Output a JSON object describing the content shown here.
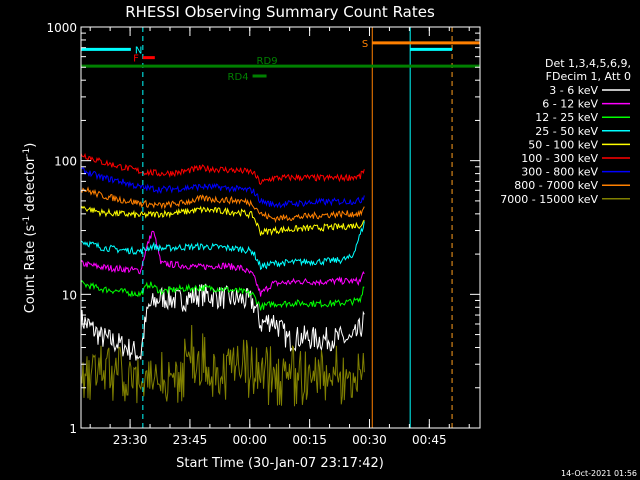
{
  "chart_data": {
    "type": "line",
    "title": "RHESSI Observing Summary Count Rates",
    "xlabel": "Start Time (30-Jan-07 23:17:42)",
    "ylabel_main": "Count Rate (s",
    "ylabel_sup1": "-1",
    "ylabel_mid": " detector",
    "ylabel_sup2": "-1",
    "ylabel_end": ")",
    "yscale": "log",
    "ylim": [
      1,
      1000
    ],
    "x_start": "23:17:42",
    "x_range_minutes": [
      0,
      100
    ],
    "x_ticks": [
      {
        "label": "23:30",
        "minute": 12.3
      },
      {
        "label": "23:45",
        "minute": 27.3
      },
      {
        "label": "00:00",
        "minute": 42.3
      },
      {
        "label": "00:15",
        "minute": 57.3
      },
      {
        "label": "00:30",
        "minute": 72.3
      },
      {
        "label": "00:45",
        "minute": 87.3
      }
    ],
    "y_ticks": [
      {
        "label": "1",
        "value": 1
      },
      {
        "label": "10",
        "value": 10
      },
      {
        "label": "100",
        "value": 100
      },
      {
        "label": "1000",
        "value": 1000
      }
    ],
    "legend_header": [
      "Det 1,3,4,5,6,9,",
      "FDecim 1, Att 0"
    ],
    "series": [
      {
        "name": "3 - 6 keV",
        "color": "#ffffff",
        "values": [
          [
            0,
            6.5
          ],
          [
            5,
            4.8
          ],
          [
            10,
            4.2
          ],
          [
            15,
            3.5
          ],
          [
            17,
            8
          ],
          [
            20,
            9.5
          ],
          [
            25,
            9
          ],
          [
            30,
            10
          ],
          [
            35,
            9.5
          ],
          [
            40,
            9.2
          ],
          [
            43,
            8.8
          ],
          [
            45,
            6
          ],
          [
            48,
            6.5
          ],
          [
            52,
            4.5
          ],
          [
            55,
            4.8
          ],
          [
            60,
            4.6
          ],
          [
            65,
            4.7
          ],
          [
            68,
            4.5
          ],
          [
            70,
            5.5
          ],
          [
            71,
            6.5
          ]
        ]
      },
      {
        "name": "6 - 12 keV",
        "color": "#ff00ff",
        "values": [
          [
            0,
            17
          ],
          [
            5,
            16
          ],
          [
            10,
            15.5
          ],
          [
            15,
            15
          ],
          [
            18,
            30
          ],
          [
            20,
            17
          ],
          [
            25,
            16.5
          ],
          [
            30,
            16
          ],
          [
            35,
            16.5
          ],
          [
            40,
            15.8
          ],
          [
            43,
            14
          ],
          [
            45,
            10
          ],
          [
            48,
            12
          ],
          [
            55,
            12.5
          ],
          [
            60,
            12.4
          ],
          [
            65,
            12.6
          ],
          [
            70,
            12.5
          ],
          [
            71,
            15
          ]
        ]
      },
      {
        "name": "12 - 25 keV",
        "color": "#00ff00",
        "values": [
          [
            0,
            12
          ],
          [
            5,
            11
          ],
          [
            10,
            10.5
          ],
          [
            15,
            10
          ],
          [
            17,
            12
          ],
          [
            20,
            10.5
          ],
          [
            25,
            11
          ],
          [
            30,
            11.2
          ],
          [
            35,
            11
          ],
          [
            40,
            10.5
          ],
          [
            43,
            10
          ],
          [
            45,
            8
          ],
          [
            48,
            8.5
          ],
          [
            55,
            8.6
          ],
          [
            60,
            8.5
          ],
          [
            65,
            8.6
          ],
          [
            70,
            9
          ],
          [
            71,
            12
          ]
        ]
      },
      {
        "name": "25 - 50 keV",
        "color": "#00ffff",
        "values": [
          [
            0,
            25
          ],
          [
            5,
            22.5
          ],
          [
            10,
            21.5
          ],
          [
            15,
            21
          ],
          [
            18,
            23
          ],
          [
            20,
            22
          ],
          [
            25,
            22.5
          ],
          [
            30,
            22.8
          ],
          [
            35,
            22.5
          ],
          [
            40,
            21.8
          ],
          [
            43,
            21
          ],
          [
            45,
            16
          ],
          [
            48,
            17
          ],
          [
            55,
            17.5
          ],
          [
            60,
            17.6
          ],
          [
            65,
            18
          ],
          [
            68,
            19
          ],
          [
            70,
            28
          ],
          [
            71,
            34
          ]
        ]
      },
      {
        "name": "50 - 100 keV",
        "color": "#ffff00",
        "values": [
          [
            0,
            45
          ],
          [
            5,
            41
          ],
          [
            10,
            40
          ],
          [
            15,
            39
          ],
          [
            20,
            40
          ],
          [
            25,
            41
          ],
          [
            30,
            43
          ],
          [
            35,
            42
          ],
          [
            40,
            41
          ],
          [
            43,
            39
          ],
          [
            45,
            29
          ],
          [
            48,
            30
          ],
          [
            55,
            31
          ],
          [
            60,
            31.5
          ],
          [
            65,
            32
          ],
          [
            70,
            33
          ],
          [
            71,
            35
          ]
        ]
      },
      {
        "name": "100 - 300 keV",
        "color": "#ff0000",
        "values": [
          [
            0,
            112
          ],
          [
            5,
            98
          ],
          [
            10,
            90
          ],
          [
            15,
            83
          ],
          [
            20,
            80
          ],
          [
            25,
            82
          ],
          [
            30,
            88
          ],
          [
            35,
            86
          ],
          [
            40,
            84
          ],
          [
            43,
            82
          ],
          [
            45,
            68
          ],
          [
            48,
            74
          ],
          [
            55,
            75
          ],
          [
            60,
            74
          ],
          [
            65,
            74.5
          ],
          [
            70,
            76
          ],
          [
            71,
            86
          ]
        ]
      },
      {
        "name": "300 - 800 keV",
        "color": "#0000ff",
        "values": [
          [
            0,
            85
          ],
          [
            5,
            75
          ],
          [
            10,
            70
          ],
          [
            15,
            63
          ],
          [
            20,
            61
          ],
          [
            25,
            62
          ],
          [
            30,
            64
          ],
          [
            35,
            63
          ],
          [
            40,
            61
          ],
          [
            43,
            60
          ],
          [
            45,
            50
          ],
          [
            48,
            47
          ],
          [
            55,
            48
          ],
          [
            60,
            49
          ],
          [
            65,
            49.5
          ],
          [
            70,
            50
          ],
          [
            71,
            55
          ]
        ]
      },
      {
        "name": "800 - 7000 keV",
        "color": "#ff8000",
        "values": [
          [
            0,
            62
          ],
          [
            5,
            55
          ],
          [
            10,
            51
          ],
          [
            15,
            48
          ],
          [
            20,
            46
          ],
          [
            25,
            48
          ],
          [
            30,
            52
          ],
          [
            35,
            51
          ],
          [
            40,
            50
          ],
          [
            43,
            48
          ],
          [
            45,
            40
          ],
          [
            48,
            37
          ],
          [
            55,
            38
          ],
          [
            60,
            39
          ],
          [
            65,
            40
          ],
          [
            70,
            40
          ],
          [
            71,
            44
          ]
        ]
      },
      {
        "name": "7000 - 15000 keV",
        "color": "#808000",
        "values": [
          [
            0,
            2
          ],
          [
            5,
            2
          ],
          [
            10,
            2
          ],
          [
            15,
            1.6
          ],
          [
            20,
            2
          ],
          [
            25,
            2
          ],
          [
            28,
            3
          ],
          [
            30,
            2.7
          ],
          [
            35,
            2
          ],
          [
            40,
            2.5
          ],
          [
            45,
            2
          ],
          [
            50,
            2
          ],
          [
            55,
            2
          ],
          [
            60,
            2
          ],
          [
            65,
            2
          ],
          [
            70,
            2
          ],
          [
            71,
            2.5
          ]
        ]
      }
    ],
    "markers": [
      {
        "label": "N",
        "color": "#00ffff",
        "y": 680,
        "segments": [
          [
            0,
            12.5
          ],
          [
            82.5,
            93
          ]
        ]
      },
      {
        "label": "F",
        "color": "#ff0000",
        "y": 590,
        "segments": [
          [
            15.5,
            18.5
          ]
        ]
      },
      {
        "label": "S",
        "color": "#ff8000",
        "y": 760,
        "segments": [
          [
            73,
            100
          ]
        ]
      },
      {
        "label": "RD9",
        "color": "#008000",
        "y": 510,
        "segments": [
          [
            0,
            100
          ]
        ]
      },
      {
        "label": "RD4",
        "color": "#008000",
        "y": 430,
        "segments": [
          [
            43,
            46.5
          ]
        ]
      }
    ],
    "vlines": [
      {
        "minute": 0,
        "color": "#00ffff",
        "style": "dashed"
      },
      {
        "minute": 15.5,
        "color": "#00ffff",
        "style": "dashed"
      },
      {
        "minute": 73,
        "color": "#ff8000",
        "style": "solid"
      },
      {
        "minute": 82.5,
        "color": "#00ffff",
        "style": "solid"
      },
      {
        "minute": 93,
        "color": "#00ffff",
        "style": "dashed"
      },
      {
        "minute": 93,
        "color": "#ff8000",
        "style": "dashed"
      }
    ]
  },
  "footer_timestamp": "14-Oct-2021 01:56"
}
